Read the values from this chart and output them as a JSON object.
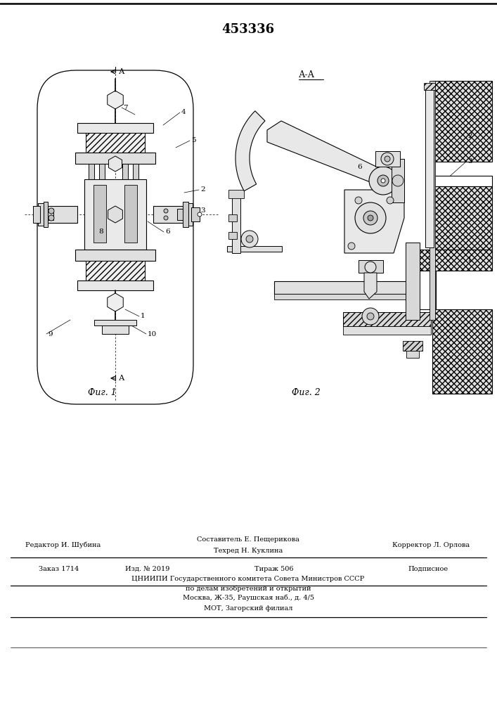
{
  "title_number": "453336",
  "fig1_caption": "Фиг. 1",
  "fig2_caption": "Фиг. 2",
  "bg_color": "#ffffff",
  "line_color": "#000000",
  "footer_line1_left": "Редактор И. Шубина",
  "footer_line1_center": "Составитель Е. Пещерикова",
  "footer_line1_center2": "Техред Н. Куклина",
  "footer_line1_right": "Корректор Л. Орлова",
  "footer_line2_col1": "Заказ 1714",
  "footer_line2_col2": "Изд. № 2019",
  "footer_line2_col3": "Тираж 506",
  "footer_line2_col4": "Подписное",
  "footer_line3": "ЦНИИПИ Государственного комитета Совета Министров СССР",
  "footer_line4": "по делам изобретений и открытий",
  "footer_line5": "Москва, Ж-35, Раушская наб., д. 4/5",
  "footer_line6": "МОТ, Загорский филиал"
}
